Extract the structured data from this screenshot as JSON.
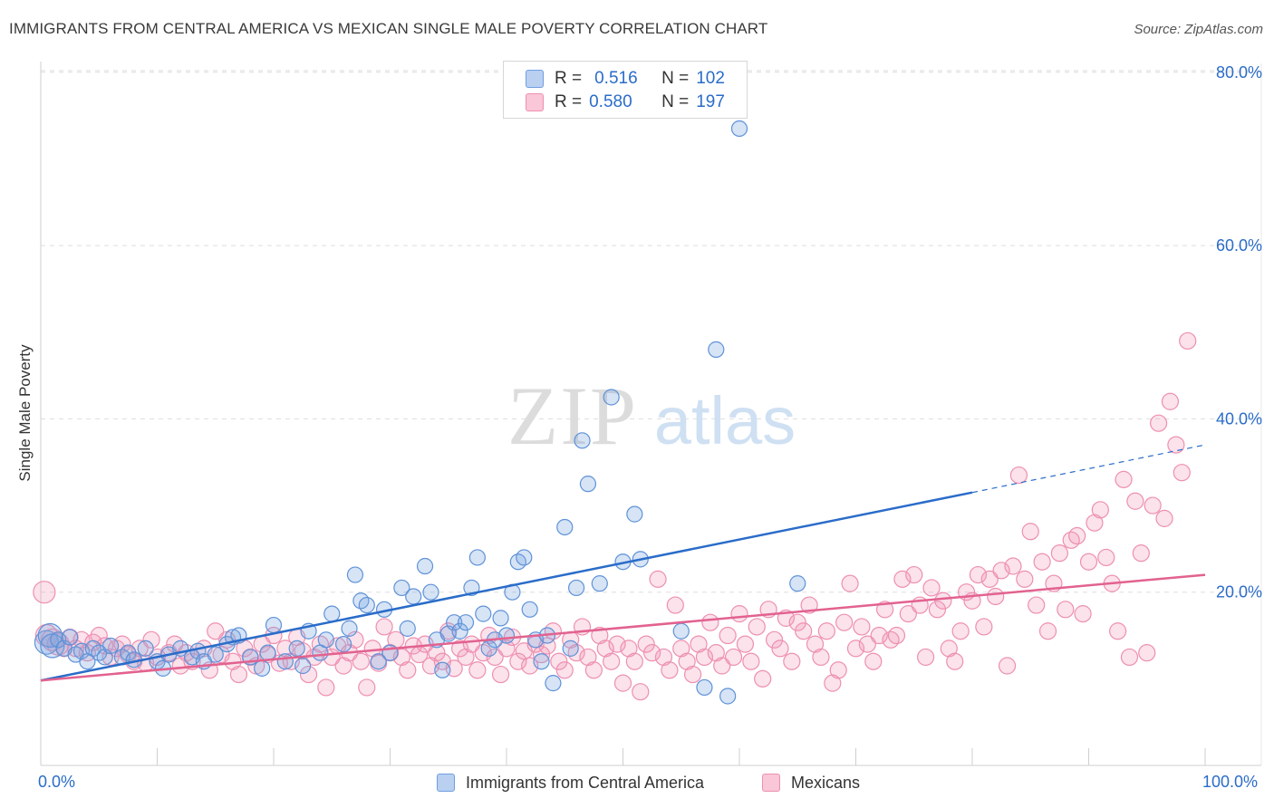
{
  "header": {
    "title": "IMMIGRANTS FROM CENTRAL AMERICA VS MEXICAN SINGLE MALE POVERTY CORRELATION CHART",
    "source": "Source: ZipAtlas.com"
  },
  "watermark": {
    "zip": "ZIP",
    "atlas": "atlas"
  },
  "legend": {
    "r_label": "R =",
    "n_label": "N =",
    "rows": [
      {
        "r": "0.516",
        "n": "102",
        "color": "#6f9ee0"
      },
      {
        "r": "0.580",
        "n": "197",
        "color": "#ee8fb0"
      }
    ]
  },
  "chart_data": {
    "type": "scatter",
    "title": "IMMIGRANTS FROM CENTRAL AMERICA VS MEXICAN SINGLE MALE POVERTY CORRELATION CHART",
    "xlabel": "",
    "ylabel": "Single Male Poverty",
    "xlim": [
      0,
      100
    ],
    "ylim": [
      0,
      84
    ],
    "x_tick_labels": [
      "0.0%",
      "100.0%"
    ],
    "y_ticks": [
      20,
      40,
      60,
      80
    ],
    "y_tick_labels": [
      "20.0%",
      "40.0%",
      "60.0%",
      "80.0%"
    ],
    "grid": true,
    "series": [
      {
        "name": "Immigrants from Central America",
        "color": "#6f9ee0",
        "line_color": "#2a6cc9",
        "trend": {
          "x": [
            0,
            80,
            100
          ],
          "y": [
            9.8,
            31.5,
            37.0
          ],
          "solid_until": 80
        },
        "points": [
          [
            0.5,
            14.2
          ],
          [
            0.8,
            15.0
          ],
          [
            1,
            13.8
          ],
          [
            1.5,
            14.5
          ],
          [
            2,
            13.5
          ],
          [
            2.5,
            14.8
          ],
          [
            3,
            12.8
          ],
          [
            3.5,
            13.2
          ],
          [
            4,
            12.0
          ],
          [
            4.5,
            13.5
          ],
          [
            5,
            13.0
          ],
          [
            5.5,
            12.5
          ],
          [
            6,
            13.8
          ],
          [
            7,
            12.5
          ],
          [
            7.5,
            13.0
          ],
          [
            8,
            12.2
          ],
          [
            9,
            13.5
          ],
          [
            10,
            12.0
          ],
          [
            10.5,
            11.2
          ],
          [
            11,
            12.8
          ],
          [
            12,
            13.5
          ],
          [
            13,
            12.5
          ],
          [
            13.5,
            13.2
          ],
          [
            14,
            12.0
          ],
          [
            15,
            12.8
          ],
          [
            16,
            14.0
          ],
          [
            16.5,
            14.8
          ],
          [
            17,
            15.0
          ],
          [
            18,
            12.5
          ],
          [
            19,
            11.2
          ],
          [
            19.5,
            13.0
          ],
          [
            20,
            16.2
          ],
          [
            21,
            12.0
          ],
          [
            22,
            13.5
          ],
          [
            22.5,
            11.5
          ],
          [
            23,
            15.5
          ],
          [
            24,
            13.0
          ],
          [
            24.5,
            14.5
          ],
          [
            25,
            17.5
          ],
          [
            26,
            14.0
          ],
          [
            26.5,
            15.8
          ],
          [
            27,
            22.0
          ],
          [
            27.5,
            19.0
          ],
          [
            28,
            18.5
          ],
          [
            29,
            12.0
          ],
          [
            29.5,
            18.0
          ],
          [
            30,
            13.0
          ],
          [
            31,
            20.5
          ],
          [
            31.5,
            15.8
          ],
          [
            32,
            19.5
          ],
          [
            33,
            23.0
          ],
          [
            33.5,
            20.0
          ],
          [
            34,
            14.5
          ],
          [
            34.5,
            11.0
          ],
          [
            35,
            15.2
          ],
          [
            35.5,
            16.5
          ],
          [
            36,
            15.5
          ],
          [
            36.5,
            16.5
          ],
          [
            37,
            20.5
          ],
          [
            37.5,
            24.0
          ],
          [
            38,
            17.5
          ],
          [
            38.5,
            13.5
          ],
          [
            39,
            14.5
          ],
          [
            39.5,
            17.0
          ],
          [
            40,
            15.0
          ],
          [
            40.5,
            20.0
          ],
          [
            41,
            23.5
          ],
          [
            41.5,
            24.0
          ],
          [
            42,
            18.0
          ],
          [
            42.5,
            14.5
          ],
          [
            43,
            12.0
          ],
          [
            43.5,
            15.0
          ],
          [
            44,
            9.5
          ],
          [
            45,
            27.5
          ],
          [
            45.5,
            13.5
          ],
          [
            46,
            20.5
          ],
          [
            46.5,
            37.5
          ],
          [
            47,
            32.5
          ],
          [
            48,
            21.0
          ],
          [
            49,
            42.5
          ],
          [
            50,
            23.5
          ],
          [
            51,
            29.0
          ],
          [
            51.5,
            23.8
          ],
          [
            55,
            15.5
          ],
          [
            57,
            9.0
          ],
          [
            58,
            48.0
          ],
          [
            59,
            8.0
          ],
          [
            60,
            73.5
          ],
          [
            65,
            21.0
          ]
        ]
      },
      {
        "name": "Mexicans",
        "color": "#ee8fb0",
        "line_color": "#e2628f",
        "trend": {
          "x": [
            0,
            100
          ],
          "y": [
            9.8,
            22.0
          ]
        },
        "points": [
          [
            0.3,
            20.0
          ],
          [
            0.5,
            15.0
          ],
          [
            1,
            14.5
          ],
          [
            1.5,
            14.0
          ],
          [
            2,
            13.5
          ],
          [
            2.5,
            14.8
          ],
          [
            3,
            13.5
          ],
          [
            3.5,
            14.5
          ],
          [
            4,
            13.0
          ],
          [
            4.5,
            14.2
          ],
          [
            5,
            15.0
          ],
          [
            5.5,
            13.8
          ],
          [
            6,
            12.5
          ],
          [
            6.5,
            13.5
          ],
          [
            7,
            14.0
          ],
          [
            7.5,
            12.8
          ],
          [
            8,
            12.0
          ],
          [
            8.5,
            13.5
          ],
          [
            9,
            11.8
          ],
          [
            9.5,
            14.5
          ],
          [
            10,
            12.5
          ],
          [
            11,
            13.0
          ],
          [
            11.5,
            14.0
          ],
          [
            12,
            11.5
          ],
          [
            12.5,
            13.0
          ],
          [
            13,
            12.0
          ],
          [
            14,
            13.5
          ],
          [
            14.5,
            11.0
          ],
          [
            15,
            15.5
          ],
          [
            15.5,
            12.8
          ],
          [
            16,
            14.5
          ],
          [
            16.5,
            12.0
          ],
          [
            17,
            10.5
          ],
          [
            17.5,
            13.5
          ],
          [
            18,
            12.5
          ],
          [
            18.5,
            11.5
          ],
          [
            19,
            14.0
          ],
          [
            19.5,
            12.8
          ],
          [
            20,
            15.0
          ],
          [
            20.5,
            11.8
          ],
          [
            21,
            13.5
          ],
          [
            21.5,
            12.0
          ],
          [
            22,
            14.8
          ],
          [
            22.5,
            13.2
          ],
          [
            23,
            10.5
          ],
          [
            23.5,
            12.5
          ],
          [
            24,
            14.0
          ],
          [
            24.5,
            9.0
          ],
          [
            25,
            12.5
          ],
          [
            25.5,
            13.8
          ],
          [
            26,
            11.5
          ],
          [
            26.5,
            13.0
          ],
          [
            27,
            14.5
          ],
          [
            27.5,
            12.0
          ],
          [
            28,
            9.0
          ],
          [
            28.5,
            13.5
          ],
          [
            29,
            11.8
          ],
          [
            29.5,
            16.0
          ],
          [
            30,
            13.0
          ],
          [
            30.5,
            14.5
          ],
          [
            31,
            12.5
          ],
          [
            31.5,
            11.0
          ],
          [
            32,
            13.8
          ],
          [
            32.5,
            12.8
          ],
          [
            33,
            14.0
          ],
          [
            33.5,
            11.5
          ],
          [
            34,
            13.0
          ],
          [
            34.5,
            12.0
          ],
          [
            35,
            15.5
          ],
          [
            35.5,
            11.2
          ],
          [
            36,
            13.5
          ],
          [
            36.5,
            12.5
          ],
          [
            37,
            14.0
          ],
          [
            37.5,
            11.0
          ],
          [
            38,
            13.0
          ],
          [
            38.5,
            15.0
          ],
          [
            39,
            12.5
          ],
          [
            39.5,
            10.5
          ],
          [
            40,
            13.5
          ],
          [
            40.5,
            14.8
          ],
          [
            41,
            12.0
          ],
          [
            41.5,
            13.2
          ],
          [
            42,
            11.5
          ],
          [
            42.5,
            14.0
          ],
          [
            43,
            12.8
          ],
          [
            43.5,
            13.8
          ],
          [
            44,
            15.5
          ],
          [
            44.5,
            12.0
          ],
          [
            45,
            11.0
          ],
          [
            45.5,
            14.5
          ],
          [
            46,
            13.0
          ],
          [
            46.5,
            16.0
          ],
          [
            47,
            12.5
          ],
          [
            47.5,
            11.0
          ],
          [
            48,
            15.0
          ],
          [
            48.5,
            13.5
          ],
          [
            49,
            12.0
          ],
          [
            49.5,
            14.0
          ],
          [
            50,
            9.5
          ],
          [
            50.5,
            13.5
          ],
          [
            51,
            12.0
          ],
          [
            51.5,
            8.5
          ],
          [
            52,
            14.0
          ],
          [
            52.5,
            13.0
          ],
          [
            53,
            21.5
          ],
          [
            53.5,
            12.5
          ],
          [
            54,
            11.0
          ],
          [
            54.5,
            18.5
          ],
          [
            55,
            13.5
          ],
          [
            55.5,
            12.0
          ],
          [
            56,
            10.5
          ],
          [
            56.5,
            14.0
          ],
          [
            57,
            12.5
          ],
          [
            57.5,
            16.5
          ],
          [
            58,
            13.0
          ],
          [
            58.5,
            11.5
          ],
          [
            59,
            15.0
          ],
          [
            59.5,
            12.5
          ],
          [
            60,
            17.5
          ],
          [
            60.5,
            14.0
          ],
          [
            61,
            12.0
          ],
          [
            61.5,
            16.0
          ],
          [
            62,
            10.0
          ],
          [
            62.5,
            18.0
          ],
          [
            63,
            14.5
          ],
          [
            63.5,
            13.5
          ],
          [
            64,
            17.0
          ],
          [
            64.5,
            12.0
          ],
          [
            65,
            16.5
          ],
          [
            65.5,
            15.5
          ],
          [
            66,
            18.5
          ],
          [
            66.5,
            14.0
          ],
          [
            67,
            12.5
          ],
          [
            67.5,
            15.5
          ],
          [
            68,
            9.5
          ],
          [
            68.5,
            11.0
          ],
          [
            69,
            16.5
          ],
          [
            69.5,
            21.0
          ],
          [
            70,
            13.5
          ],
          [
            70.5,
            16.0
          ],
          [
            71,
            14.0
          ],
          [
            71.5,
            12.0
          ],
          [
            72,
            15.0
          ],
          [
            72.5,
            18.0
          ],
          [
            73,
            14.5
          ],
          [
            73.5,
            15.0
          ],
          [
            74,
            21.5
          ],
          [
            74.5,
            17.5
          ],
          [
            75,
            22.0
          ],
          [
            75.5,
            18.5
          ],
          [
            76,
            12.5
          ],
          [
            76.5,
            20.5
          ],
          [
            77,
            18.0
          ],
          [
            77.5,
            19.0
          ],
          [
            78,
            13.5
          ],
          [
            78.5,
            12.0
          ],
          [
            79,
            15.5
          ],
          [
            79.5,
            20.0
          ],
          [
            80,
            19.0
          ],
          [
            80.5,
            22.0
          ],
          [
            81,
            16.0
          ],
          [
            81.5,
            21.5
          ],
          [
            82,
            19.5
          ],
          [
            82.5,
            22.5
          ],
          [
            83,
            11.5
          ],
          [
            83.5,
            23.0
          ],
          [
            84,
            33.5
          ],
          [
            84.5,
            21.5
          ],
          [
            85,
            27.0
          ],
          [
            85.5,
            18.5
          ],
          [
            86,
            23.5
          ],
          [
            86.5,
            15.5
          ],
          [
            87,
            21.0
          ],
          [
            87.5,
            24.5
          ],
          [
            88,
            18.0
          ],
          [
            88.5,
            26.0
          ],
          [
            89,
            26.5
          ],
          [
            89.5,
            17.5
          ],
          [
            90,
            23.5
          ],
          [
            90.5,
            28.0
          ],
          [
            91,
            29.5
          ],
          [
            91.5,
            24.0
          ],
          [
            92,
            21.0
          ],
          [
            92.5,
            15.5
          ],
          [
            93,
            33.0
          ],
          [
            93.5,
            12.5
          ],
          [
            94,
            30.5
          ],
          [
            94.5,
            24.5
          ],
          [
            95,
            13.0
          ],
          [
            95.5,
            30.0
          ],
          [
            96,
            39.5
          ],
          [
            96.5,
            28.5
          ],
          [
            97,
            42.0
          ],
          [
            97.5,
            37.0
          ],
          [
            98,
            33.8
          ],
          [
            98.5,
            49.0
          ]
        ]
      }
    ]
  },
  "bottom_legend": [
    {
      "label": "Immigrants from Central America",
      "color": "#6f9ee0"
    },
    {
      "label": "Mexicans",
      "color": "#ee8fb0"
    }
  ]
}
